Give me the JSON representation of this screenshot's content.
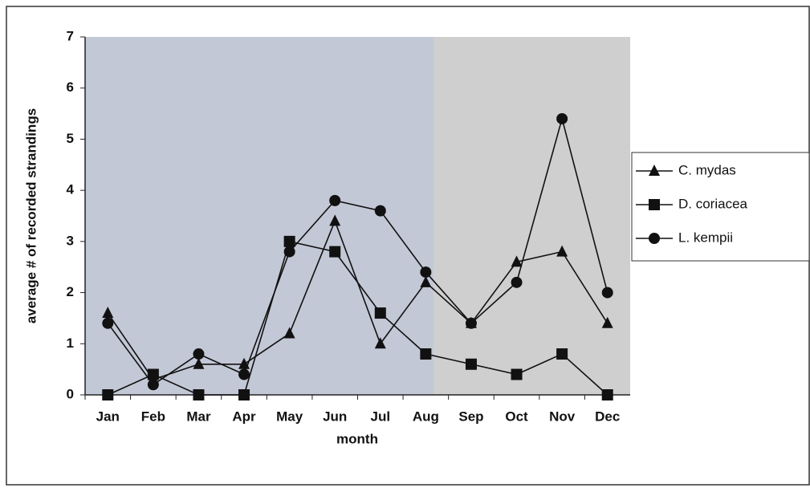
{
  "chart_data": {
    "type": "line",
    "y_label": "average # of recorded strandings",
    "x_label": "month",
    "categories": [
      "Jan",
      "Feb",
      "Mar",
      "Apr",
      "May",
      "Jun",
      "Jul",
      "Aug",
      "Sep",
      "Oct",
      "Nov",
      "Dec"
    ],
    "series": [
      {
        "name": "C. mydas",
        "color": "#111111",
        "marker": "triangle",
        "values": [
          1.6,
          0.3,
          0.6,
          0.6,
          1.2,
          3.4,
          1.0,
          2.2,
          1.4,
          2.6,
          2.8,
          1.4
        ]
      },
      {
        "name": "D. coriacea",
        "color": "#111111",
        "marker": "square",
        "values": [
          0,
          0.4,
          0,
          0,
          3.0,
          2.8,
          1.6,
          0.8,
          0.6,
          0.4,
          0.8,
          0
        ]
      },
      {
        "name": "L. kempii",
        "color": "#111111",
        "marker": "circle",
        "values": [
          1.4,
          0.2,
          0.8,
          0.4,
          2.8,
          3.8,
          3.6,
          2.4,
          1.4,
          2.2,
          5.4,
          2.0
        ]
      }
    ],
    "ylim": [
      0,
      7
    ],
    "yticks": [
      0,
      1,
      2,
      3,
      4,
      5,
      6,
      7
    ],
    "legend": "right"
  }
}
